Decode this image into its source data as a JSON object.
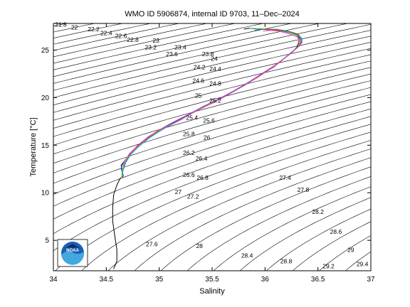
{
  "chart_data": {
    "type": "line",
    "title": "WMO ID 5906874, internal ID 9703, 11–Dec–2024",
    "xlabel": "Salinity",
    "ylabel": "Temperature [°C]",
    "xlim": [
      34,
      37
    ],
    "ylim": [
      1.8,
      27.8
    ],
    "xticks": [
      "34",
      "34.5",
      "35",
      "35.5",
      "36",
      "36.5",
      "37"
    ],
    "yticks": [
      "5",
      "10",
      "15",
      "20",
      "25"
    ],
    "grid": false,
    "legend": "none",
    "logo": "NOAA",
    "density_contour_labels": [
      {
        "text": "21.8",
        "s": 34.07,
        "t": 27.7
      },
      {
        "text": "22",
        "s": 34.2,
        "t": 27.4
      },
      {
        "text": "22.2",
        "s": 34.38,
        "t": 27.2
      },
      {
        "text": "22.4",
        "s": 34.5,
        "t": 26.8
      },
      {
        "text": "22.6",
        "s": 34.64,
        "t": 26.5
      },
      {
        "text": "22.8",
        "s": 34.75,
        "t": 26.1
      },
      {
        "text": "23",
        "s": 34.97,
        "t": 26.0
      },
      {
        "text": "23.2",
        "s": 34.92,
        "t": 25.3
      },
      {
        "text": "23.4",
        "s": 35.2,
        "t": 25.3
      },
      {
        "text": "23.6",
        "s": 35.12,
        "t": 24.6
      },
      {
        "text": "23.8",
        "s": 35.46,
        "t": 24.6
      },
      {
        "text": "24",
        "s": 35.52,
        "t": 24.1
      },
      {
        "text": "24.2",
        "s": 35.38,
        "t": 23.2
      },
      {
        "text": "24.4",
        "s": 35.53,
        "t": 23.0
      },
      {
        "text": "24.6",
        "s": 35.37,
        "t": 21.8
      },
      {
        "text": "24.8",
        "s": 35.53,
        "t": 21.5
      },
      {
        "text": "25",
        "s": 35.37,
        "t": 20.2
      },
      {
        "text": "25.2",
        "s": 35.53,
        "t": 19.7
      },
      {
        "text": "25.4",
        "s": 35.31,
        "t": 17.9
      },
      {
        "text": "25.6",
        "s": 35.47,
        "t": 17.6
      },
      {
        "text": "25.8",
        "s": 35.28,
        "t": 16.2
      },
      {
        "text": "26",
        "s": 35.45,
        "t": 15.8
      },
      {
        "text": "26.2",
        "s": 35.28,
        "t": 14.2
      },
      {
        "text": "26.4",
        "s": 35.4,
        "t": 13.6
      },
      {
        "text": "26.6",
        "s": 35.28,
        "t": 11.9
      },
      {
        "text": "26.8",
        "s": 35.41,
        "t": 11.6
      },
      {
        "text": "27",
        "s": 35.18,
        "t": 10.1
      },
      {
        "text": "27.2",
        "s": 35.32,
        "t": 9.6
      },
      {
        "text": "27.4",
        "s": 36.19,
        "t": 11.6
      },
      {
        "text": "27.6",
        "s": 34.93,
        "t": 4.6
      },
      {
        "text": "27.8",
        "s": 36.36,
        "t": 10.3
      },
      {
        "text": "28",
        "s": 35.38,
        "t": 4.4
      },
      {
        "text": "28.2",
        "s": 36.5,
        "t": 8.0
      },
      {
        "text": "28.4",
        "s": 35.83,
        "t": 3.4
      },
      {
        "text": "28.6",
        "s": 36.67,
        "t": 5.9
      },
      {
        "text": "28.8",
        "s": 36.2,
        "t": 2.8
      },
      {
        "text": "29",
        "s": 36.81,
        "t": 4.0
      },
      {
        "text": "29.2",
        "s": 36.6,
        "t": 2.3
      },
      {
        "text": "29.4",
        "s": 36.92,
        "t": 2.5
      }
    ],
    "series": [
      {
        "color": "#000000",
        "x": [
          34.57,
          34.6,
          34.6,
          34.58,
          34.56,
          34.56,
          34.57,
          34.6,
          34.63,
          34.66,
          34.65,
          34.64,
          34.67,
          34.72,
          34.8,
          34.9,
          35.0,
          35.08,
          35.2,
          35.35,
          35.5,
          35.65,
          35.8,
          35.95,
          36.08,
          36.18,
          36.26,
          36.3,
          36.32,
          36.32,
          36.28,
          36.2,
          36.08,
          35.96,
          35.85,
          35.8
        ],
        "y": [
          2.0,
          2.8,
          4.0,
          5.5,
          7.0,
          8.5,
          9.8,
          10.8,
          11.5,
          11.8,
          12.3,
          12.9,
          13.3,
          14.1,
          15.0,
          15.9,
          16.6,
          17.1,
          17.8,
          18.6,
          19.4,
          20.3,
          21.3,
          22.3,
          23.2,
          24.1,
          24.8,
          25.3,
          25.8,
          26.3,
          26.7,
          27.0,
          27.1,
          27.2,
          27.3,
          27.2
        ]
      },
      {
        "color": "#1f5fff",
        "x": [
          34.66,
          34.64,
          34.67,
          34.72,
          34.8,
          34.9,
          35.0,
          35.1,
          35.22,
          35.36,
          35.5,
          35.66,
          35.82,
          35.96,
          36.1,
          36.2,
          36.28,
          36.33,
          36.34,
          36.3,
          36.22,
          36.12,
          36.0,
          35.9
        ],
        "y": [
          11.6,
          12.6,
          13.3,
          14.1,
          15.0,
          15.9,
          16.6,
          17.2,
          17.9,
          18.7,
          19.5,
          20.4,
          21.4,
          22.4,
          23.4,
          24.3,
          25.0,
          25.6,
          26.1,
          26.6,
          26.9,
          27.1,
          27.2,
          27.1
        ]
      },
      {
        "color": "#e8c020",
        "x": [
          34.64,
          34.66,
          34.7,
          34.78,
          34.88,
          34.98,
          35.07,
          35.19,
          35.33,
          35.48,
          35.63,
          35.79,
          35.93,
          36.06,
          36.17,
          36.25,
          36.31,
          36.33,
          36.3,
          36.2,
          36.06,
          35.95
        ],
        "y": [
          11.4,
          12.9,
          13.8,
          14.8,
          15.7,
          16.5,
          17.0,
          17.7,
          18.5,
          19.3,
          20.2,
          21.2,
          22.1,
          23.1,
          24.0,
          24.7,
          25.3,
          25.9,
          26.5,
          26.9,
          27.1,
          27.3
        ]
      },
      {
        "color": "#20b040",
        "x": [
          34.65,
          34.68,
          34.73,
          34.81,
          34.91,
          35.01,
          35.11,
          35.23,
          35.37,
          35.52,
          35.67,
          35.83,
          35.98,
          36.11,
          36.21,
          36.29,
          36.34,
          36.35,
          36.31,
          36.22,
          36.1,
          35.98,
          35.85
        ],
        "y": [
          12.1,
          13.1,
          14.0,
          14.9,
          15.8,
          16.5,
          17.2,
          17.9,
          18.7,
          19.6,
          20.5,
          21.5,
          22.5,
          23.5,
          24.4,
          25.1,
          25.7,
          26.2,
          26.7,
          27.0,
          27.2,
          27.2,
          27.3
        ]
      },
      {
        "color": "#e03020",
        "x": [
          34.67,
          34.71,
          34.79,
          34.89,
          35.0,
          35.09,
          35.21,
          35.35,
          35.5,
          35.64,
          35.8,
          35.94,
          36.08,
          36.19,
          36.27,
          36.33,
          36.35,
          36.32,
          36.24,
          36.13,
          36.0
        ],
        "y": [
          13.0,
          13.9,
          14.9,
          15.8,
          16.6,
          17.1,
          17.8,
          18.6,
          19.5,
          20.3,
          21.3,
          22.3,
          23.3,
          24.2,
          24.9,
          25.5,
          26.0,
          26.6,
          26.9,
          27.1,
          27.2
        ]
      },
      {
        "color": "#8040c0",
        "x": [
          34.66,
          34.69,
          34.75,
          34.84,
          34.94,
          35.04,
          35.14,
          35.27,
          35.42,
          35.57,
          35.72,
          35.87,
          36.01,
          36.14,
          36.23,
          36.3,
          36.35,
          36.33,
          36.26,
          36.14,
          36.02
        ],
        "y": [
          12.4,
          13.4,
          14.4,
          15.3,
          16.1,
          16.8,
          17.4,
          18.2,
          19.1,
          19.9,
          20.8,
          21.8,
          22.8,
          23.7,
          24.6,
          25.2,
          25.8,
          26.4,
          26.8,
          27.0,
          27.1
        ]
      },
      {
        "color": "#00b0c0",
        "x": [
          34.65,
          34.67,
          34.72,
          34.8,
          34.9,
          34.99,
          35.09,
          35.21,
          35.35,
          35.49,
          35.65,
          35.81,
          35.95,
          36.09,
          36.19,
          36.27,
          36.32,
          36.35,
          36.32,
          36.23,
          36.12
        ],
        "y": [
          11.9,
          12.9,
          13.9,
          14.8,
          15.7,
          16.4,
          17.0,
          17.7,
          18.6,
          19.4,
          20.3,
          21.3,
          22.3,
          23.3,
          24.2,
          24.9,
          25.5,
          26.0,
          26.5,
          26.9,
          27.0
        ]
      },
      {
        "color": "#ff40c0",
        "x": [
          34.66,
          34.7,
          34.77,
          34.86,
          34.96,
          35.06,
          35.17,
          35.3,
          35.45,
          35.6,
          35.76,
          35.91,
          36.05,
          36.16,
          36.25,
          36.31,
          36.34,
          36.3,
          36.2,
          36.08,
          35.98
        ],
        "y": [
          12.8,
          13.7,
          14.6,
          15.5,
          16.3,
          16.9,
          17.5,
          18.3,
          19.2,
          20.0,
          21.0,
          22.0,
          23.0,
          23.9,
          24.7,
          25.3,
          25.9,
          26.4,
          26.8,
          27.1,
          27.0
        ]
      }
    ]
  }
}
